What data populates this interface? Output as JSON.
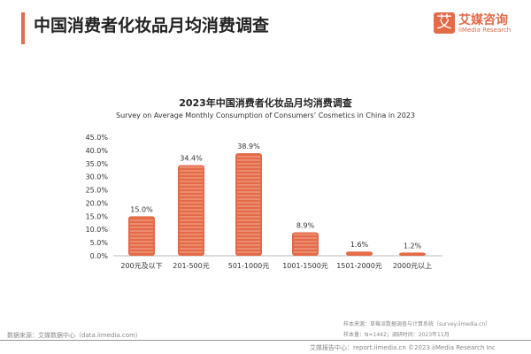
{
  "header": {
    "title": "中国消费者化妆品月均消费调查",
    "logo_cn": "艾媒咨询",
    "logo_en": "iiMedia Research",
    "logo_mark": "艾"
  },
  "chart_data": {
    "type": "bar",
    "title": "2023年中国消费者化妆品月均消费调查",
    "subtitle": "Survey on Average Monthly Consumption of Consumers’  Cosmetics in China in 2023",
    "categories": [
      "200元及以下",
      "201-500元",
      "501-1000元",
      "1001-1500元",
      "1501-2000元",
      "2000元以上"
    ],
    "values": [
      15.0,
      34.4,
      38.9,
      8.9,
      1.6,
      1.2
    ],
    "data_labels": [
      "15.0%",
      "34.4%",
      "38.9%",
      "8.9%",
      "1.6%",
      "1.2%"
    ],
    "yticks": [
      "0.0%",
      "5.0%",
      "10.0%",
      "15.0%",
      "20.0%",
      "25.0%",
      "30.0%",
      "35.0%",
      "40.0%",
      "45.0%"
    ],
    "ylim": [
      0,
      45
    ],
    "color": "#e46a48"
  },
  "footer": {
    "source": "数据来源：艾媒数据中心（data.iimedia.com）",
    "sample_source": "样本来源：草莓派数据调查与计算系统（survey.iimedia.cn）",
    "sample_size": "样本量：N=1442；调研时间：2023年11月",
    "report": "艾媒报告中心：report.iimedia.cn   ©2023  iiMedia Research  Inc"
  }
}
